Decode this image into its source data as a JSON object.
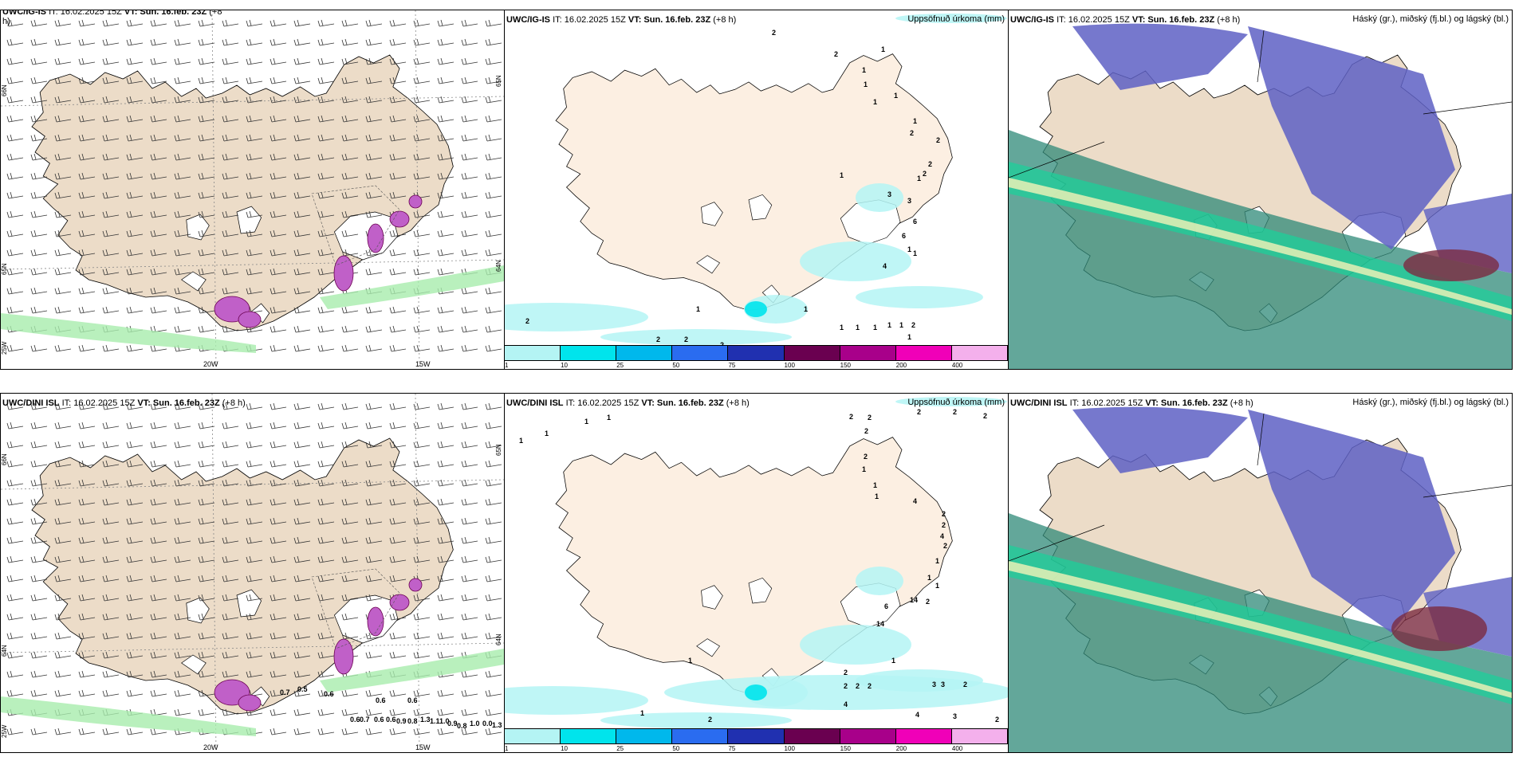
{
  "panels": {
    "ig_wind": {
      "title_model": "UWC/IG-IS",
      "title_it": "IT: 16.02.2025 15Z",
      "title_vt": "VT: Sun. 16.feb. 23Z",
      "title_lead": "(+8",
      "title_lead2": "h)",
      "lon_labels": [
        "20W",
        "15W"
      ],
      "lat_labels": [
        "66N",
        "65N",
        "64N",
        "25W",
        "65N",
        "64N"
      ]
    },
    "ig_precip": {
      "title_model": "UWC/IG-IS",
      "title_it": "IT: 16.02.2025 15Z",
      "title_vt": "VT: Sun. 16.feb. 23Z",
      "title_lead": "(+8 h)",
      "right_title": "Uppsöfnuð úrkoma (mm)",
      "numbers": [
        "2",
        "2",
        "1",
        "1",
        "1",
        "1",
        "1",
        "1",
        "2",
        "2",
        "2",
        "2",
        "1",
        "1",
        "3",
        "3",
        "6",
        "6",
        "1",
        "4",
        "2",
        "2",
        "1",
        "1",
        "1",
        "1",
        "1",
        "1",
        "1",
        "1",
        "2",
        "2",
        "2",
        "1"
      ]
    },
    "ig_cloud": {
      "title_model": "UWC/IG-IS",
      "title_it": "IT: 16.02.2025 15Z",
      "title_vt": "VT: Sun. 16.feb. 23Z",
      "title_lead": "(+8 h)",
      "right_title": "Háský (gr.), miðský (fj.bl.) og lágský (bl.)"
    },
    "dini_wind": {
      "title_model": "UWC/DINI ISL",
      "title_it": "IT: 16.02.2025 15Z",
      "title_vt": "VT: Sun. 16.feb. 23Z",
      "title_lead": "(+8 h)",
      "lon_labels": [
        "20W",
        "15W"
      ],
      "lat_labels": [
        "66N",
        "65N",
        "64N",
        "25W",
        "65N",
        "64N"
      ],
      "numbers": [
        "0.7",
        "0.5",
        "0.6",
        "0.6",
        "0.6",
        "0.6",
        "0.6",
        "0.7",
        "0.9",
        "0.8",
        "0.6",
        "1.3",
        "1.1",
        "1.0",
        "0.9",
        "0.8",
        "1.0",
        "0.0",
        "1.3"
      ]
    },
    "dini_precip": {
      "title_model": "UWC/DINI ISL",
      "title_it": "IT: 16.02.2025 15Z",
      "title_vt": "VT: Sun. 16.feb. 23Z",
      "title_lead": "(+8 h)",
      "right_title": "Uppsöfnuð úrkoma (mm)",
      "numbers": [
        "1",
        "1",
        "1",
        "1",
        "2",
        "2",
        "2",
        "2",
        "2",
        "2",
        "2",
        "1",
        "1",
        "1",
        "4",
        "2",
        "2",
        "4",
        "2",
        "1",
        "1",
        "1",
        "14",
        "2",
        "6",
        "14",
        "1",
        "2",
        "2",
        "2",
        "2",
        "3",
        "3",
        "2",
        "4",
        "4",
        "3",
        "2",
        "2",
        "1",
        "1"
      ]
    },
    "dini_cloud": {
      "title_model": "UWC/DINI ISL",
      "title_it": "IT: 16.02.2025 15Z",
      "title_vt": "VT: Sun. 16.feb. 23Z",
      "title_lead": "(+8 h)",
      "right_title": "Háský (gr.), miðský (fj.bl.) og lágský (bl.)"
    }
  },
  "colorbar": {
    "ticks": [
      "1",
      "10",
      "25",
      "50",
      "75",
      "100",
      "150",
      "200",
      "400"
    ],
    "colors": [
      "#b4f4f4",
      "#00e4ec",
      "#00b8ec",
      "#2a6cf0",
      "#2030b0",
      "#6a0050",
      "#a8008a",
      "#f000b8",
      "#f4b0ec"
    ]
  },
  "map_colors": {
    "land": "#ecdcc8",
    "land_precip": "#fcefe2",
    "ice": "#ffffff",
    "magenta": "#c060c8",
    "green": "#a8ecac",
    "cyan_precip": "#b4f4f4",
    "high_cloud": "#2f8a78",
    "mid_cloud": "#5e60c4",
    "low_cloud": "#1ecf9a",
    "dark_red": "#7a2a40"
  }
}
